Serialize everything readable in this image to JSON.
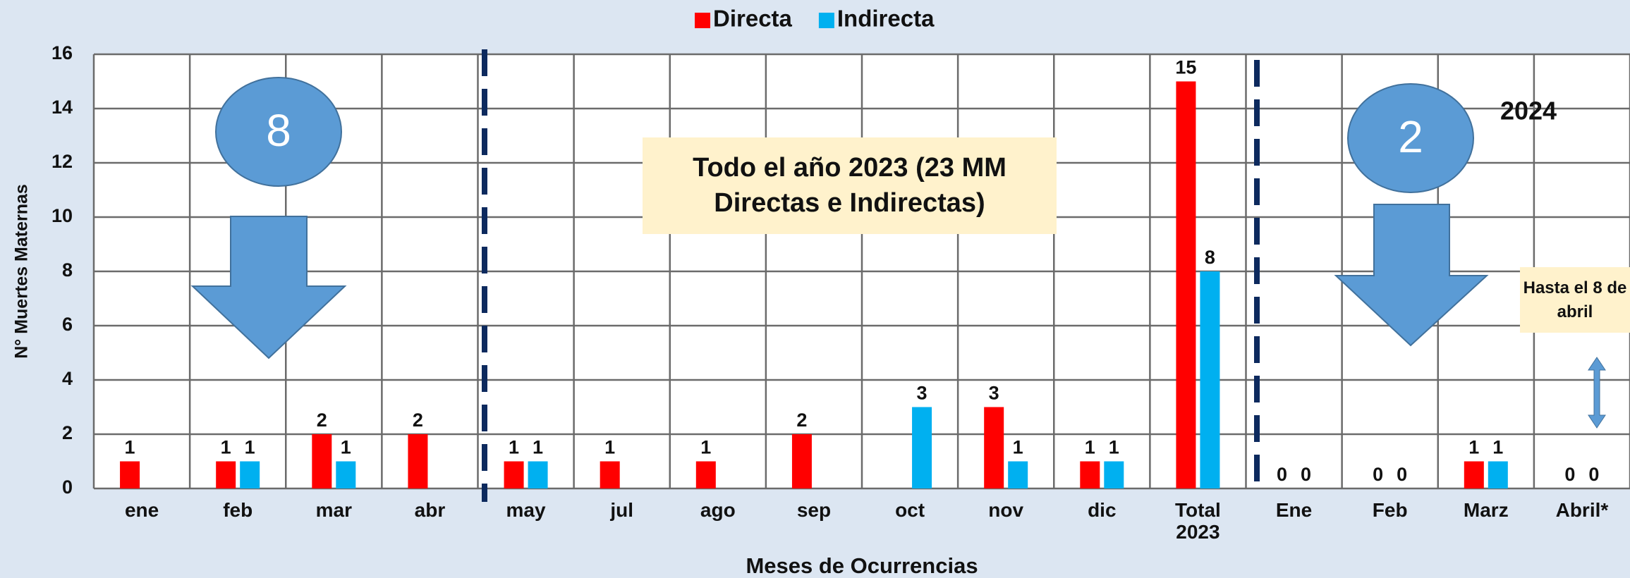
{
  "chart_data": {
    "type": "bar",
    "legend": "top",
    "grid": true,
    "x_label": "Meses de Ocurrencias",
    "y_label": "N° Muertes Maternas",
    "categories": [
      "ene",
      "feb",
      "mar",
      "abr",
      "may",
      "jul",
      "ago",
      "sep",
      "oct",
      "nov",
      "dic",
      "Total 2023",
      "Ene",
      "Feb",
      "Marz",
      "Abril*"
    ],
    "series": [
      {
        "name": "Directa",
        "color": "#ff0000",
        "values": [
          1,
          1,
          2,
          2,
          1,
          1,
          1,
          2,
          null,
          3,
          1,
          15,
          0,
          0,
          1,
          0
        ]
      },
      {
        "name": "Indirecta",
        "color": "#00b0f0",
        "values": [
          null,
          1,
          1,
          null,
          1,
          null,
          null,
          null,
          3,
          1,
          1,
          8,
          0,
          0,
          1,
          0
        ]
      }
    ],
    "ylim": [
      0,
      16
    ],
    "yticks": [
      0,
      2,
      4,
      6,
      8,
      10,
      12,
      14,
      16
    ],
    "annotations": {
      "circle_2023": "8",
      "circle_2024": "2",
      "box_2023": "Todo el año 2023 (23 MM Directas e Indirectas)",
      "year_2024": "2024",
      "box_2024": "Hasta el 8 de abril"
    }
  }
}
